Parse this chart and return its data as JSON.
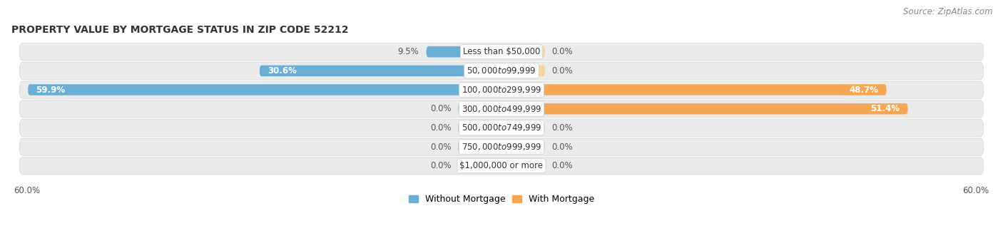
{
  "title": "PROPERTY VALUE BY MORTGAGE STATUS IN ZIP CODE 52212",
  "source_text": "Source: ZipAtlas.com",
  "categories": [
    "Less than $50,000",
    "$50,000 to $99,999",
    "$100,000 to $299,999",
    "$300,000 to $499,999",
    "$500,000 to $749,999",
    "$750,000 to $999,999",
    "$1,000,000 or more"
  ],
  "without_mortgage": [
    9.5,
    30.6,
    59.9,
    0.0,
    0.0,
    0.0,
    0.0
  ],
  "with_mortgage": [
    0.0,
    0.0,
    48.7,
    51.4,
    0.0,
    0.0,
    0.0
  ],
  "axis_max": 60.0,
  "color_without": "#6aaed6",
  "color_with": "#f5a753",
  "color_without_stub": "#a8cce0",
  "color_with_stub": "#fad4a0",
  "row_bg_color": "#ebebeb",
  "row_border_color": "#d8d8d8",
  "title_fontsize": 10,
  "label_fontsize": 8.5,
  "cat_fontsize": 8.5,
  "tick_fontsize": 8.5,
  "legend_fontsize": 9,
  "source_fontsize": 8.5
}
